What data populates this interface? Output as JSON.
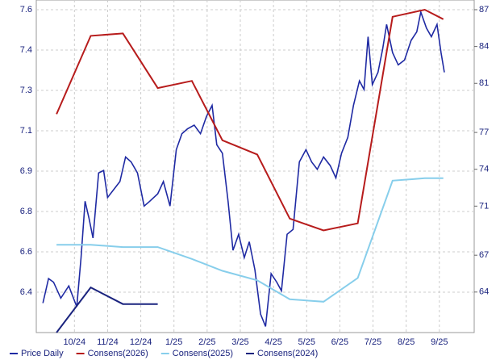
{
  "chart_data": {
    "type": "line",
    "categories": [
      "10/24",
      "11/24",
      "12/24",
      "1/25",
      "2/25",
      "3/25",
      "4/25",
      "5/25",
      "6/25",
      "7/25",
      "8/25",
      "9/25"
    ],
    "xlim": [
      -1.15,
      12.05
    ],
    "ylim": [
      6.24,
      7.6
    ],
    "yticks": [
      {
        "value": 7.6,
        "label": "7.6"
      },
      {
        "value": 7.43,
        "label": "7.4"
      },
      {
        "value": 7.26,
        "label": "7.3"
      },
      {
        "value": 7.09,
        "label": "7.1"
      },
      {
        "value": 6.92,
        "label": "6.9"
      },
      {
        "value": 6.75,
        "label": "6.8"
      },
      {
        "value": 6.58,
        "label": "6.6"
      },
      {
        "value": 6.41,
        "label": "6.4"
      }
    ],
    "y2lim": [
      60.7,
      87
    ],
    "y2ticks": [
      87,
      84,
      81,
      77,
      74,
      71,
      67,
      64
    ],
    "grid": true,
    "series": [
      {
        "name": "Price Daily",
        "color": "#1f2aa3",
        "axis": "y2",
        "x": [
          -0.95,
          -0.78,
          -0.63,
          -0.41,
          -0.17,
          0.07,
          0.2,
          0.32,
          0.44,
          0.56,
          0.73,
          0.88,
          1.0,
          1.17,
          1.37,
          1.54,
          1.71,
          1.9,
          2.1,
          2.27,
          2.51,
          2.68,
          2.88,
          3.07,
          3.24,
          3.41,
          3.61,
          3.8,
          3.98,
          4.15,
          4.29,
          4.46,
          4.63,
          4.78,
          4.95,
          5.12,
          5.27,
          5.44,
          5.61,
          5.76,
          5.93,
          6.1,
          6.24,
          6.41,
          6.59,
          6.78,
          6.98,
          7.15,
          7.32,
          7.51,
          7.71,
          7.88,
          8.05,
          8.24,
          8.41,
          8.59,
          8.73,
          8.85,
          8.98,
          9.15,
          9.29,
          9.41,
          9.59,
          9.76,
          9.95,
          10.15,
          10.32,
          10.44,
          10.61,
          10.76,
          10.93,
          11.05,
          11.15
        ],
        "values": [
          63.1,
          65.1,
          64.8,
          63.5,
          64.5,
          62.8,
          66.8,
          71.4,
          70.0,
          68.4,
          73.7,
          73.9,
          71.7,
          72.3,
          73.0,
          75.0,
          74.6,
          73.7,
          71.0,
          71.4,
          72.0,
          73.0,
          71.0,
          75.6,
          76.9,
          77.3,
          77.6,
          76.9,
          78.3,
          79.2,
          76.0,
          75.3,
          71.4,
          67.4,
          68.7,
          66.8,
          68.1,
          65.8,
          62.2,
          61.2,
          65.5,
          64.8,
          64.1,
          68.7,
          69.1,
          74.6,
          75.6,
          74.6,
          74.0,
          75.0,
          74.3,
          73.3,
          75.3,
          76.6,
          79.2,
          81.2,
          80.5,
          84.8,
          80.9,
          81.9,
          83.8,
          85.8,
          83.5,
          82.5,
          82.9,
          84.5,
          85.2,
          86.8,
          85.5,
          84.8,
          85.8,
          83.5,
          81.9
        ]
      },
      {
        "name": "Consens(2026)",
        "color": "#b71c1c",
        "x": [
          -0.54,
          0.49,
          1.46,
          2.51,
          3.54,
          4.46,
          5.51,
          6.49,
          7.51,
          8.54,
          9.59,
          10.56,
          11.12
        ],
        "values": [
          7.16,
          7.49,
          7.5,
          7.27,
          7.3,
          7.05,
          6.99,
          6.72,
          6.67,
          6.7,
          7.57,
          7.6,
          7.56
        ]
      },
      {
        "name": "Consens(2025)",
        "color": "#87ceeb",
        "x": [
          -0.54,
          0.49,
          1.46,
          2.51,
          3.54,
          4.46,
          5.51,
          6.49,
          7.51,
          8.54,
          9.59,
          10.56,
          11.12
        ],
        "values": [
          6.61,
          6.61,
          6.6,
          6.6,
          6.55,
          6.5,
          6.46,
          6.38,
          6.37,
          6.47,
          6.88,
          6.89,
          6.89
        ]
      },
      {
        "name": "Consens(2024)",
        "color": "#1a237e",
        "x": [
          -0.54,
          0.49,
          1.46,
          2.51
        ],
        "values": [
          6.24,
          6.43,
          6.36,
          6.36
        ]
      }
    ]
  }
}
